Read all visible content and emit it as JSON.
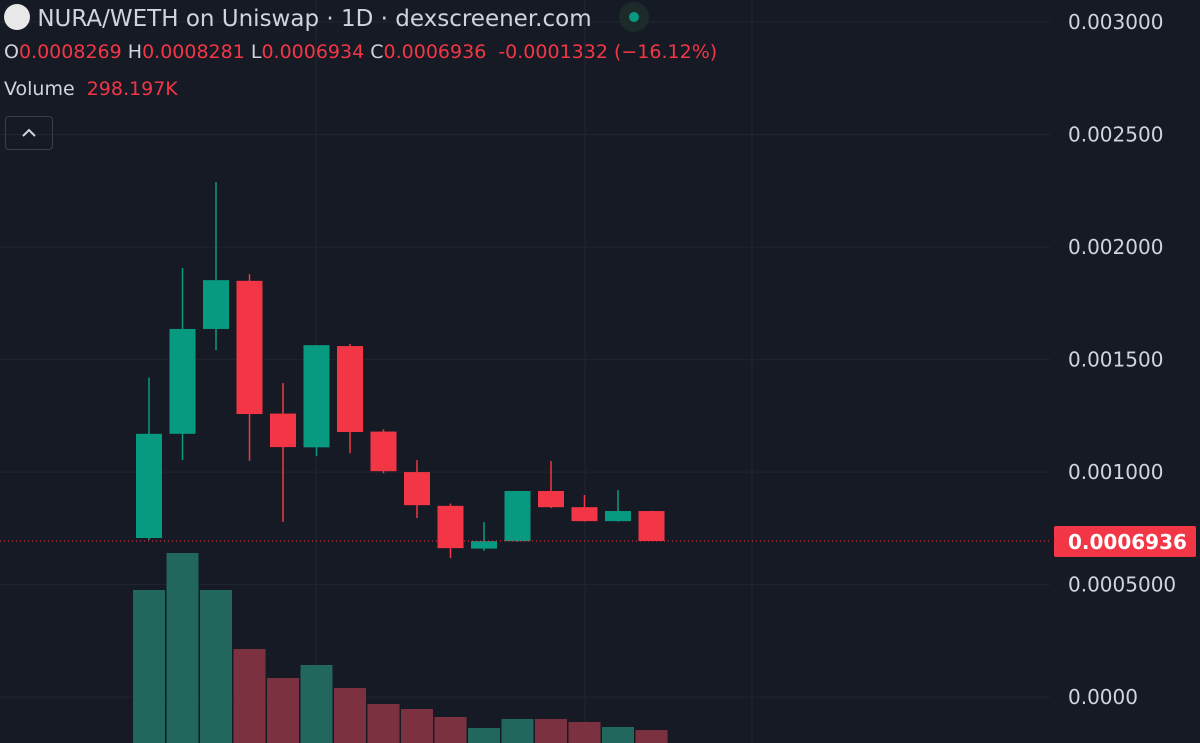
{
  "chart_data": {
    "type": "candlestick",
    "title": "NURA/WETH on Uniswap · 1D · dexscreener.com",
    "open": [
      0.000707,
      0.00117,
      0.001636,
      0.00185,
      0.00126,
      0.00111,
      0.00156,
      0.00118,
      0.001,
      0.00085,
      0.00066,
      0.000693,
      0.000916,
      0.000844,
      0.000782,
      0.0008269
    ],
    "high": [
      0.00142,
      0.001907,
      0.002289,
      0.00188,
      0.001396,
      0.001564,
      0.00157,
      0.00119,
      0.001053,
      0.00086,
      0.000778,
      0.000916,
      0.001049,
      0.000898,
      0.00092,
      0.0008281
    ],
    "low": [
      0.000698,
      0.001053,
      0.001542,
      0.00105,
      0.000778,
      0.001071,
      0.001084,
      0.000995,
      0.000796,
      0.000618,
      0.00065,
      0.00069,
      0.00084,
      0.00078,
      0.00078,
      0.0006934
    ],
    "close": [
      0.00117,
      0.001636,
      0.001853,
      0.001258,
      0.001111,
      0.001564,
      0.001178,
      0.001004,
      0.000853,
      0.000662,
      0.000693,
      0.000916,
      0.000844,
      0.000782,
      0.000827,
      0.0006936
    ],
    "volume": [
      3519,
      4370,
      3519,
      2162,
      1495,
      1794,
      1265,
      897,
      782,
      598,
      345,
      552,
      552,
      483,
      368,
      298.197
    ],
    "up_color": "#089981",
    "down_color": "#f23645",
    "volume_up_color": "#22675e",
    "volume_down_color": "#7c3140",
    "ylim": [
      -0.000204,
      0.003098
    ],
    "yticks": [
      {
        "value": 0,
        "label": "0.0000"
      },
      {
        "value": 0.0005,
        "label": "0.0005000"
      },
      {
        "value": 0.001,
        "label": "0.001000"
      },
      {
        "value": 0.0015,
        "label": "0.001500"
      },
      {
        "value": 0.002,
        "label": "0.002000"
      },
      {
        "value": 0.0025,
        "label": "0.002500"
      },
      {
        "value": 0.003,
        "label": "0.003000"
      }
    ],
    "grid": true,
    "legend": {
      "labels": [
        "O",
        "H",
        "L",
        "C"
      ],
      "change": "-0.0001332 (−16.12%)",
      "volume_label": "Volume",
      "volume_value": "298.197K"
    }
  }
}
